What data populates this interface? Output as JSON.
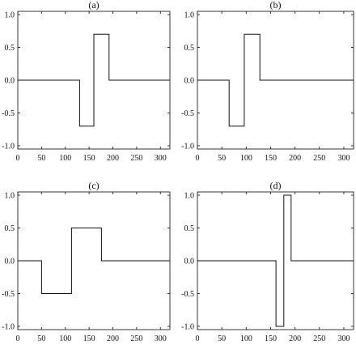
{
  "chart_data": [
    {
      "type": "line",
      "label": "(a)",
      "xlim": [
        0,
        320
      ],
      "ylim": [
        -1.05,
        1.05
      ],
      "xticks": [
        0,
        50,
        100,
        150,
        200,
        250,
        300
      ],
      "yticks": [
        1.0,
        0.5,
        0.0,
        -0.5,
        -1.0
      ],
      "xtick_labels": [
        "0",
        "50",
        "100",
        "150",
        "200",
        "250",
        "300"
      ],
      "ytick_labels": [
        "1.0",
        "0.5",
        "0.0",
        "-0.5",
        "-1.0"
      ],
      "x": [
        0,
        130,
        130,
        160,
        160,
        192,
        192,
        320
      ],
      "y": [
        0,
        0,
        -0.7,
        -0.7,
        0.7,
        0.7,
        0,
        0
      ]
    },
    {
      "type": "line",
      "label": "(b)",
      "xlim": [
        0,
        320
      ],
      "ylim": [
        -1.05,
        1.05
      ],
      "xticks": [
        0,
        50,
        100,
        150,
        200,
        250,
        300
      ],
      "yticks": [
        1.0,
        0.5,
        0.0,
        -0.5,
        -1.0
      ],
      "xtick_labels": [
        "0",
        "50",
        "100",
        "150",
        "200",
        "250",
        "300"
      ],
      "ytick_labels": [
        "1.0",
        "0.5",
        "0.0",
        "-0.5",
        "-1.0"
      ],
      "x": [
        0,
        65,
        65,
        96,
        96,
        128,
        128,
        320
      ],
      "y": [
        0,
        0,
        -0.7,
        -0.7,
        0.7,
        0.7,
        0,
        0
      ]
    },
    {
      "type": "line",
      "label": "(c)",
      "xlim": [
        0,
        320
      ],
      "ylim": [
        -1.05,
        1.05
      ],
      "xticks": [
        0,
        50,
        100,
        150,
        200,
        250,
        300
      ],
      "yticks": [
        1.0,
        0.5,
        0.0,
        -0.5,
        -1.0
      ],
      "xtick_labels": [
        "0",
        "50",
        "100",
        "150",
        "200",
        "250",
        "300"
      ],
      "ytick_labels": [
        "1.0",
        "0.5",
        "0.0",
        "-0.5",
        "-1.0"
      ],
      "x": [
        0,
        50,
        50,
        113,
        113,
        176,
        176,
        320
      ],
      "y": [
        0,
        0,
        -0.5,
        -0.5,
        0.5,
        0.5,
        0,
        0
      ]
    },
    {
      "type": "line",
      "label": "(d)",
      "xlim": [
        0,
        320
      ],
      "ylim": [
        -1.05,
        1.05
      ],
      "xticks": [
        0,
        50,
        100,
        150,
        200,
        250,
        300
      ],
      "yticks": [
        1.0,
        0.5,
        0.0,
        -0.5,
        -1.0
      ],
      "xtick_labels": [
        "0",
        "50",
        "100",
        "150",
        "200",
        "250",
        "300"
      ],
      "ytick_labels": [
        "1.0",
        "0.5",
        "0.0",
        "-0.5",
        "-1.0"
      ],
      "x": [
        0,
        161,
        161,
        177,
        177,
        192,
        192,
        320
      ],
      "y": [
        0,
        0,
        -1.0,
        -1.0,
        1.0,
        1.0,
        0,
        0
      ]
    }
  ]
}
